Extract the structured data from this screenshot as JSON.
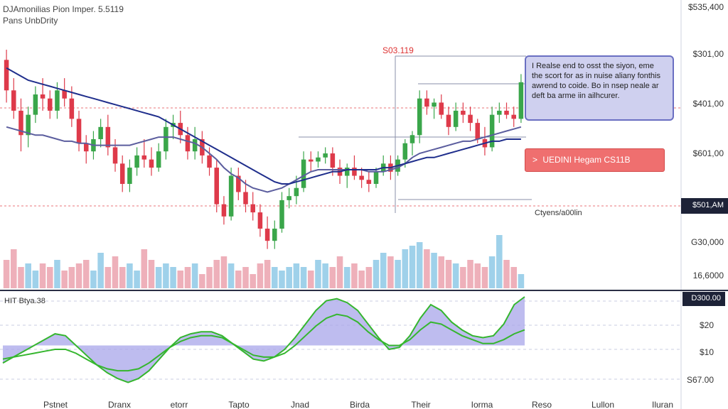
{
  "header": {
    "title": "DJAmonilias Pion Imper. 5.5119",
    "subtitle": "Pans UnbDrity"
  },
  "annotations": {
    "top_marker": "S03.119",
    "note_text": "I Realse end to osst the siyon, eme the scort for as in nuise aliany fonthis awrend to coide. Bo in nsep neale ar deft ba arme iin ailhcurer.",
    "callout_text": "UEDINI Hegam CS11B",
    "callout_arrow": ">",
    "right_label": "Ctyens/a00lin",
    "indicator_label": "HIT Btya.38"
  },
  "colors": {
    "up": "#3aa64a",
    "down": "#de3a4a",
    "ma_fast": "#5b5d9e",
    "ma_slow": "#1f2e8c",
    "vol_up": "#8ec9e6",
    "vol_down": "#eba2ae",
    "osc_line": "#35b62e",
    "osc_fill": "#a8a6ea",
    "dash": "#e8767a",
    "tag_bg": "#1d2237"
  },
  "chart_data": [
    {
      "type": "candlestick",
      "title": "DJAmonilias Pion Imper. 5.5119",
      "y_axis_labels": [
        "$535,400",
        "$301,00",
        "$401,00",
        "$601,00",
        "$501,AM",
        "G30,000",
        "16,6000"
      ],
      "current_price_tag": "$501,AM",
      "candles": [
        {
          "o": 105,
          "h": 110,
          "l": 84,
          "c": 90
        },
        {
          "o": 90,
          "h": 96,
          "l": 76,
          "c": 80
        },
        {
          "o": 80,
          "h": 86,
          "l": 60,
          "c": 68
        },
        {
          "o": 68,
          "h": 82,
          "l": 62,
          "c": 78
        },
        {
          "o": 78,
          "h": 92,
          "l": 74,
          "c": 88
        },
        {
          "o": 88,
          "h": 96,
          "l": 80,
          "c": 86
        },
        {
          "o": 86,
          "h": 90,
          "l": 76,
          "c": 80
        },
        {
          "o": 80,
          "h": 94,
          "l": 76,
          "c": 90
        },
        {
          "o": 90,
          "h": 96,
          "l": 82,
          "c": 86
        },
        {
          "o": 86,
          "h": 92,
          "l": 72,
          "c": 76
        },
        {
          "o": 76,
          "h": 80,
          "l": 60,
          "c": 64
        },
        {
          "o": 64,
          "h": 68,
          "l": 54,
          "c": 60
        },
        {
          "o": 60,
          "h": 70,
          "l": 56,
          "c": 66
        },
        {
          "o": 66,
          "h": 76,
          "l": 62,
          "c": 72
        },
        {
          "o": 72,
          "h": 78,
          "l": 58,
          "c": 62
        },
        {
          "o": 62,
          "h": 66,
          "l": 50,
          "c": 54
        },
        {
          "o": 54,
          "h": 58,
          "l": 40,
          "c": 44
        },
        {
          "o": 44,
          "h": 56,
          "l": 40,
          "c": 52
        },
        {
          "o": 52,
          "h": 62,
          "l": 48,
          "c": 58
        },
        {
          "o": 58,
          "h": 66,
          "l": 52,
          "c": 56
        },
        {
          "o": 56,
          "h": 62,
          "l": 48,
          "c": 52
        },
        {
          "o": 52,
          "h": 64,
          "l": 50,
          "c": 60
        },
        {
          "o": 60,
          "h": 76,
          "l": 56,
          "c": 72
        },
        {
          "o": 72,
          "h": 78,
          "l": 66,
          "c": 74
        },
        {
          "o": 74,
          "h": 80,
          "l": 64,
          "c": 68
        },
        {
          "o": 68,
          "h": 72,
          "l": 56,
          "c": 60
        },
        {
          "o": 60,
          "h": 72,
          "l": 56,
          "c": 66
        },
        {
          "o": 66,
          "h": 70,
          "l": 54,
          "c": 58
        },
        {
          "o": 58,
          "h": 62,
          "l": 48,
          "c": 52
        },
        {
          "o": 52,
          "h": 56,
          "l": 30,
          "c": 34
        },
        {
          "o": 34,
          "h": 38,
          "l": 24,
          "c": 28
        },
        {
          "o": 28,
          "h": 52,
          "l": 26,
          "c": 48
        },
        {
          "o": 48,
          "h": 52,
          "l": 36,
          "c": 40
        },
        {
          "o": 40,
          "h": 46,
          "l": 30,
          "c": 34
        },
        {
          "o": 34,
          "h": 40,
          "l": 26,
          "c": 30
        },
        {
          "o": 30,
          "h": 34,
          "l": 18,
          "c": 22
        },
        {
          "o": 22,
          "h": 28,
          "l": 12,
          "c": 16
        },
        {
          "o": 16,
          "h": 26,
          "l": 12,
          "c": 22
        },
        {
          "o": 22,
          "h": 40,
          "l": 20,
          "c": 36
        },
        {
          "o": 36,
          "h": 42,
          "l": 32,
          "c": 38
        },
        {
          "o": 38,
          "h": 48,
          "l": 34,
          "c": 42
        },
        {
          "o": 42,
          "h": 60,
          "l": 40,
          "c": 56
        },
        {
          "o": 56,
          "h": 60,
          "l": 50,
          "c": 55
        },
        {
          "o": 55,
          "h": 60,
          "l": 52,
          "c": 57
        },
        {
          "o": 57,
          "h": 62,
          "l": 54,
          "c": 59
        },
        {
          "o": 59,
          "h": 62,
          "l": 48,
          "c": 52
        },
        {
          "o": 52,
          "h": 56,
          "l": 44,
          "c": 48
        },
        {
          "o": 48,
          "h": 54,
          "l": 42,
          "c": 52
        },
        {
          "o": 52,
          "h": 58,
          "l": 46,
          "c": 48
        },
        {
          "o": 48,
          "h": 52,
          "l": 42,
          "c": 46
        },
        {
          "o": 46,
          "h": 50,
          "l": 40,
          "c": 44
        },
        {
          "o": 44,
          "h": 52,
          "l": 42,
          "c": 50
        },
        {
          "o": 50,
          "h": 58,
          "l": 48,
          "c": 54
        },
        {
          "o": 54,
          "h": 58,
          "l": 46,
          "c": 50
        },
        {
          "o": 50,
          "h": 58,
          "l": 48,
          "c": 56
        },
        {
          "o": 56,
          "h": 66,
          "l": 52,
          "c": 64
        },
        {
          "o": 64,
          "h": 70,
          "l": 58,
          "c": 68
        },
        {
          "o": 68,
          "h": 90,
          "l": 64,
          "c": 86
        },
        {
          "o": 86,
          "h": 90,
          "l": 78,
          "c": 82
        },
        {
          "o": 82,
          "h": 86,
          "l": 76,
          "c": 84
        },
        {
          "o": 84,
          "h": 88,
          "l": 76,
          "c": 78
        },
        {
          "o": 78,
          "h": 82,
          "l": 68,
          "c": 72
        },
        {
          "o": 72,
          "h": 84,
          "l": 70,
          "c": 80
        },
        {
          "o": 80,
          "h": 84,
          "l": 74,
          "c": 78
        },
        {
          "o": 78,
          "h": 82,
          "l": 70,
          "c": 74
        },
        {
          "o": 74,
          "h": 76,
          "l": 64,
          "c": 66
        },
        {
          "o": 66,
          "h": 72,
          "l": 58,
          "c": 62
        },
        {
          "o": 62,
          "h": 82,
          "l": 60,
          "c": 78
        },
        {
          "o": 78,
          "h": 84,
          "l": 74,
          "c": 80
        },
        {
          "o": 80,
          "h": 84,
          "l": 76,
          "c": 78
        },
        {
          "o": 78,
          "h": 82,
          "l": 72,
          "c": 76
        },
        {
          "o": 76,
          "h": 98,
          "l": 74,
          "c": 94
        }
      ],
      "ma_fast": [
        72,
        71,
        70,
        69,
        68,
        68,
        67,
        66,
        65,
        65,
        64,
        64,
        63,
        63,
        63,
        63,
        63,
        63,
        64,
        65,
        66,
        67,
        67,
        67,
        66,
        65,
        64,
        62,
        59,
        56,
        52,
        49,
        47,
        44,
        42,
        41,
        40,
        41,
        42,
        44,
        46,
        48,
        50,
        51,
        51,
        51,
        51,
        51,
        51,
        51,
        50,
        50,
        50,
        51,
        52,
        54,
        57,
        59,
        60,
        61,
        62,
        63,
        64,
        65,
        65,
        66,
        67,
        68,
        69,
        70,
        71,
        72
      ],
      "ma_slow": [
        101,
        99,
        97,
        95,
        94,
        93,
        92,
        91,
        90,
        89,
        88,
        87,
        86,
        85,
        84,
        83,
        82,
        81,
        80,
        79,
        78,
        77,
        75,
        73,
        71,
        69,
        67,
        65,
        63,
        61,
        59,
        57,
        55,
        53,
        51,
        49,
        47,
        45,
        44,
        44,
        45,
        46,
        47,
        48,
        49,
        50,
        50,
        51,
        51,
        51,
        51,
        51,
        52,
        52,
        53,
        54,
        55,
        56,
        57,
        57,
        58,
        59,
        60,
        61,
        62,
        63,
        64,
        65,
        65,
        66,
        66,
        66
      ],
      "volume": [
        40,
        55,
        30,
        35,
        25,
        35,
        30,
        40,
        25,
        30,
        35,
        40,
        25,
        50,
        30,
        45,
        30,
        35,
        25,
        55,
        40,
        30,
        35,
        30,
        25,
        30,
        35,
        20,
        30,
        40,
        45,
        35,
        25,
        30,
        20,
        35,
        40,
        30,
        25,
        30,
        35,
        30,
        25,
        40,
        35,
        30,
        45,
        30,
        35,
        25,
        30,
        40,
        50,
        45,
        40,
        55,
        60,
        65,
        55,
        50,
        45,
        40,
        35,
        30,
        40,
        35,
        30,
        45,
        75,
        40,
        30,
        20
      ]
    },
    {
      "type": "line",
      "title": "HIT Btya.38",
      "y_axis_labels": [
        "D300.00",
        "$20",
        "$10",
        "S67.00"
      ],
      "x_labels": [
        "Pstnet",
        "Dranx",
        "etorr",
        "Tapto",
        "Jnad",
        "Birda",
        "Their",
        "Iorma",
        "Reso",
        "Lullon",
        "Iluran"
      ],
      "oscillator": [
        32,
        38,
        44,
        50,
        56,
        62,
        60,
        50,
        40,
        30,
        22,
        16,
        12,
        16,
        24,
        36,
        48,
        58,
        62,
        64,
        64,
        60,
        52,
        44,
        36,
        34,
        38,
        46,
        58,
        72,
        86,
        96,
        98,
        94,
        86,
        72,
        58,
        46,
        48,
        60,
        78,
        92,
        86,
        74,
        66,
        60,
        58,
        60,
        72,
        92,
        100
      ],
      "signal": [
        36,
        38,
        40,
        42,
        44,
        46,
        46,
        42,
        36,
        30,
        26,
        24,
        24,
        26,
        32,
        40,
        48,
        54,
        58,
        60,
        60,
        58,
        52,
        46,
        40,
        38,
        38,
        42,
        50,
        60,
        70,
        78,
        82,
        80,
        74,
        64,
        56,
        50,
        50,
        56,
        66,
        74,
        72,
        66,
        60,
        56,
        52,
        52,
        56,
        62,
        66
      ]
    }
  ]
}
